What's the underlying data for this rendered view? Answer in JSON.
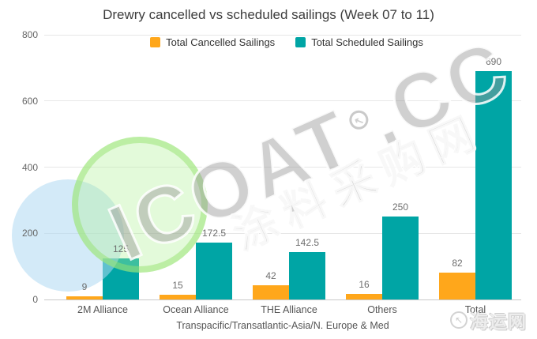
{
  "chart_data": {
    "type": "bar",
    "title": "Drewry cancelled vs scheduled sailings (Week 07 to 11)",
    "categories": [
      "2M Alliance",
      "Ocean Alliance",
      "THE Alliance",
      "Others",
      "Total"
    ],
    "series": [
      {
        "name": "Total Cancelled Sailings",
        "color": "#FFA71B",
        "values": [
          9,
          15,
          42,
          16,
          82
        ]
      },
      {
        "name": "Total Scheduled Sailings",
        "color": "#00A5A5",
        "values": [
          125,
          172.5,
          142.5,
          250,
          690
        ]
      }
    ],
    "xlabel": "Transpacific/Transatlantic-Asia/N. Europe & Med",
    "ylabel": "",
    "ylim": [
      0,
      800
    ],
    "yticks": [
      0,
      200,
      400,
      600,
      800
    ],
    "grid": true,
    "legend_position": "top"
  },
  "watermark": {
    "brand": "ICOAT",
    "mark": "↖",
    "tld": ".CC",
    "cn": "涂料采购网",
    "badge_mark": "↖",
    "badge": "海运网"
  },
  "colors": {
    "cancelled": "#FFA71B",
    "scheduled": "#00A5A5",
    "gridline": "#E7E7E7",
    "axis_line": "#C9C9C9",
    "title_text": "#3D3D3D",
    "tick_text": "#666666"
  }
}
